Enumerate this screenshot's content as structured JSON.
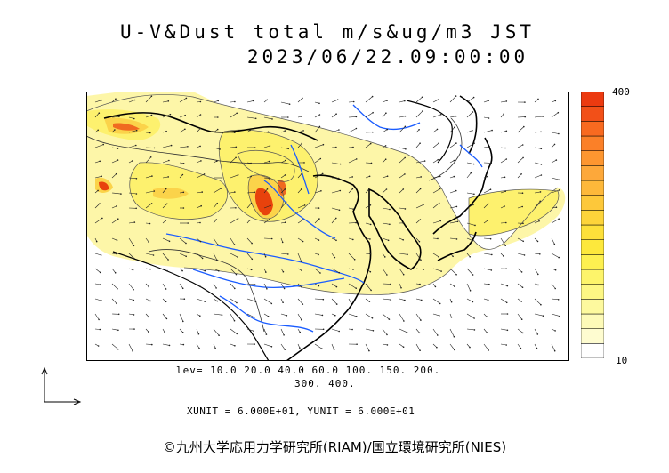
{
  "header": {
    "title_line1": "U-V&Dust total m/s&ug/m3 JST",
    "title_line2": "2023/06/22.09:00:00"
  },
  "legend": {
    "max_label": "400",
    "min_label": "10",
    "colors": [
      "#ffffff",
      "#fefcd0",
      "#fdfab8",
      "#fdf99e",
      "#fdf784",
      "#fdf46a",
      "#fdf050",
      "#fde83c",
      "#fde03a",
      "#fdd43a",
      "#fdc83a",
      "#fdb83a",
      "#fda83a",
      "#fd9630",
      "#fb8028",
      "#f86a20",
      "#f25018",
      "#ec3a10"
    ],
    "color_low": "#fdf6a8",
    "color_mid": "#fbd34a",
    "color_high": "#e8420c"
  },
  "contour_levels": {
    "line1": "lev= 10.0 20.0 40.0 60.0 100. 150. 200.",
    "line2": "300. 400."
  },
  "units_text": "XUNIT = 6.000E+01, YUNIT = 6.000E+01",
  "copyright": "©九州大学応用力学研究所(RIAM)/国立環境研究所(NIES)",
  "map": {
    "coast_color": "#000000",
    "river_color": "#1a5cff",
    "vector_color": "#222222"
  }
}
